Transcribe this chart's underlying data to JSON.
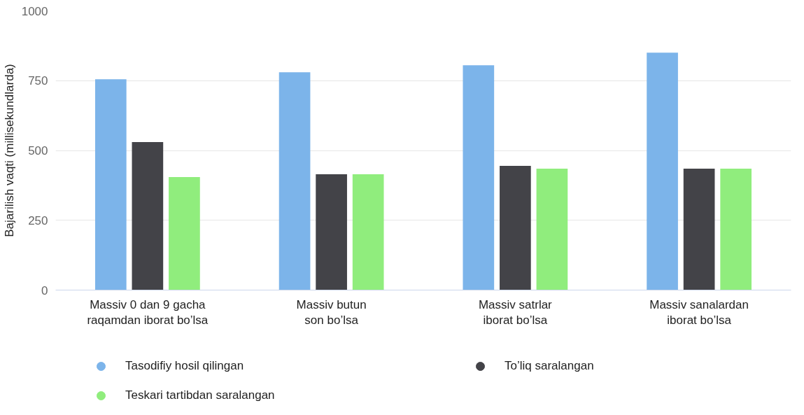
{
  "chart_data": {
    "type": "bar",
    "ylabel": "Bajarilish vaqti (millisekundlarda)",
    "categories": [
      "Massiv 0 dan 9 gacha raqamdan iborat bo’lsa",
      "Massiv butun son bo’lsa",
      "Massiv satrlar iborat bo’lsa",
      "Massiv sanalardan iborat bo’lsa"
    ],
    "series": [
      {
        "name": "Tasodifiy hosil qilingan",
        "color": "#7cb4ea",
        "values": [
          755,
          780,
          805,
          850
        ]
      },
      {
        "name": "To’liq saralangan",
        "color": "#434348",
        "values": [
          530,
          415,
          445,
          435
        ]
      },
      {
        "name": "Teskari tartibdan saralangan",
        "color": "#90ed7d",
        "values": [
          405,
          415,
          435,
          435
        ]
      }
    ],
    "ylim": [
      0,
      1000
    ],
    "yticks": [
      0,
      250,
      500,
      750,
      1000
    ],
    "grid": "y",
    "legend": "bottom",
    "marker": "circle"
  }
}
